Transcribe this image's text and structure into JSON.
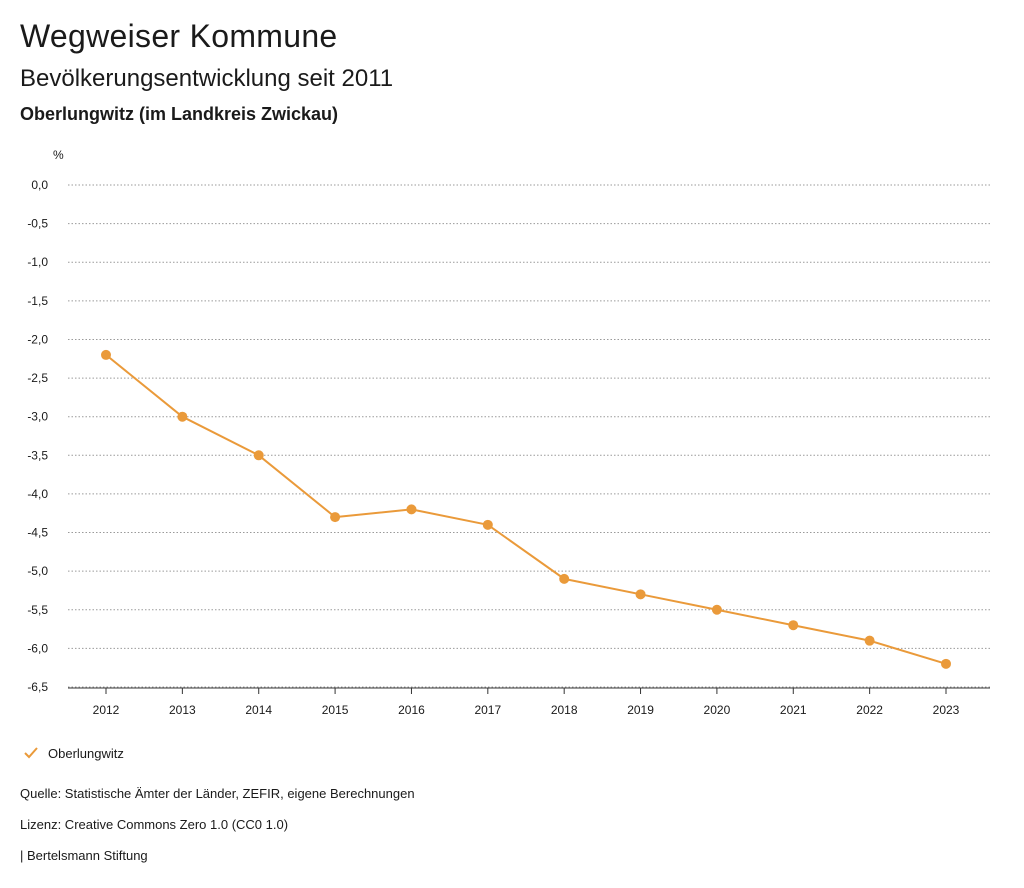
{
  "header": {
    "title": "Wegweiser Kommune",
    "subtitle": "Bevölkerungsentwicklung seit 2011",
    "region": "Oberlungwitz (im Landkreis Zwickau)"
  },
  "chart_data": {
    "type": "line",
    "ylabel": "%",
    "xlabel": "",
    "x": [
      "2012",
      "2013",
      "2014",
      "2015",
      "2016",
      "2017",
      "2018",
      "2019",
      "2020",
      "2021",
      "2022",
      "2023"
    ],
    "series": [
      {
        "name": "Oberlungwitz",
        "color": "#ea9a3a",
        "values": [
          -2.2,
          -3.0,
          -3.5,
          -4.3,
          -4.2,
          -4.4,
          -5.1,
          -5.3,
          -5.5,
          -5.7,
          -5.9,
          -6.2
        ]
      }
    ],
    "ylim": [
      -6.5,
      0.0
    ],
    "yticks": [
      "0,0",
      "-0,5",
      "-1,0",
      "-1,5",
      "-2,0",
      "-2,5",
      "-3,0",
      "-3,5",
      "-4,0",
      "-4,5",
      "-5,0",
      "-5,5",
      "-6,0",
      "-6,5"
    ],
    "grid": true,
    "legend": "bottom-left"
  },
  "legend": {
    "label": "Oberlungwitz"
  },
  "footer": {
    "source": "Quelle: Statistische Ämter der Länder, ZEFIR, eigene Berechnungen",
    "license": "Lizenz: Creative Commons Zero 1.0 (CC0 1.0)",
    "brand": "| Bertelsmann Stiftung"
  }
}
